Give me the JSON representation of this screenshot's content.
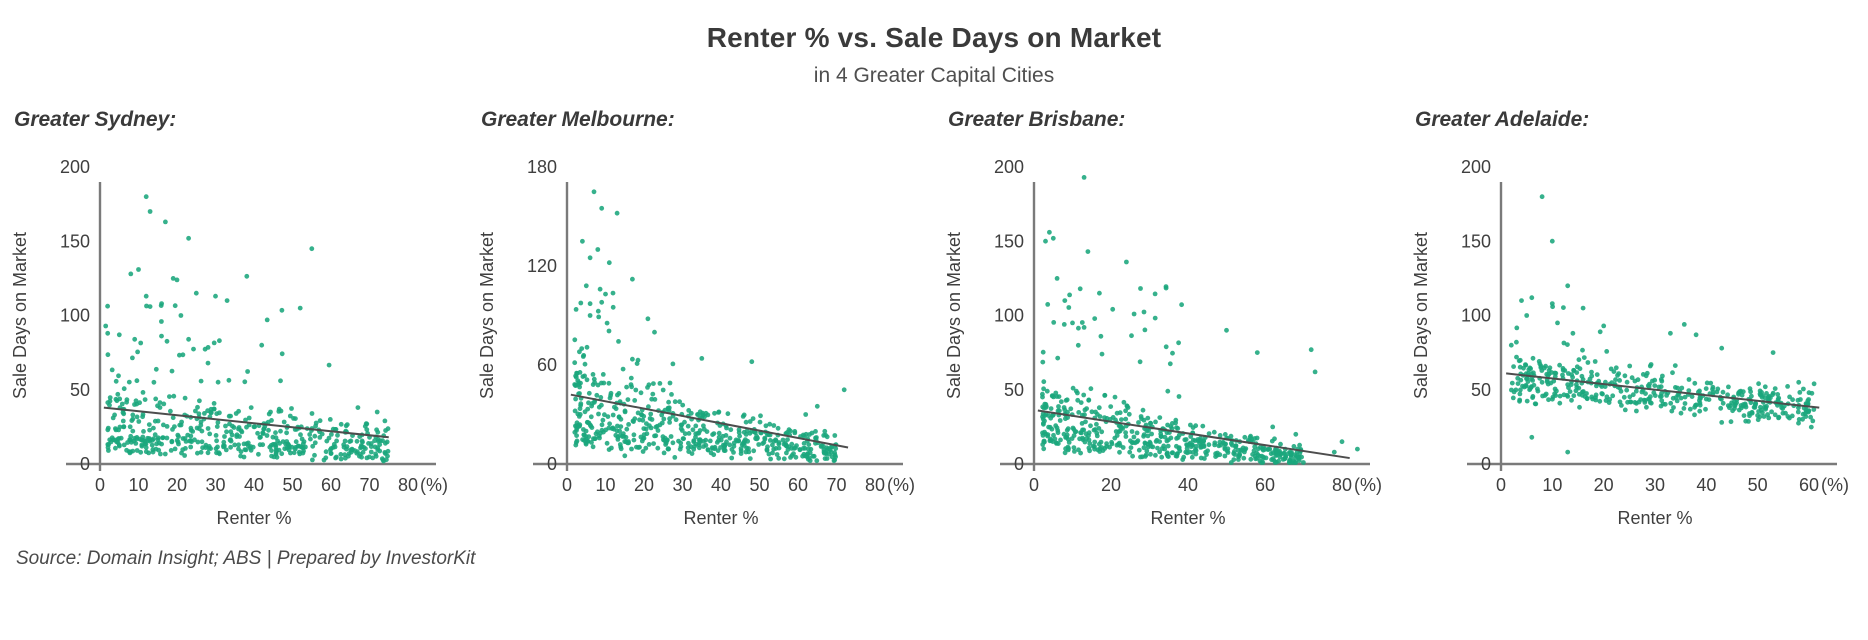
{
  "header": {
    "title": "Renter % vs. Sale Days on Market",
    "subtitle": "in 4 Greater Capital Cities"
  },
  "footer": {
    "source": "Source: Domain Insight; ABS | Prepared by InvestorKit"
  },
  "colors": {
    "dot": "#1aa67c",
    "trend": "#4d4d4d",
    "axis": "#7a7a7a",
    "text_dark": "#3a3a3a",
    "text_mid": "#4f4f4f"
  },
  "chart_data": {
    "type": "scatter",
    "title": "Renter % vs. Sale Days on Market",
    "subtitle": "in 4 Greater Capital Cities",
    "legend": "none",
    "grid": false,
    "charts": [
      {
        "title": "Greater Sydney:",
        "slug": "greater-sydney",
        "xlabel": "Renter %",
        "ylabel": "Sale Days on Market",
        "unit_label": "(%)",
        "x_ticks": [
          0,
          10,
          20,
          30,
          40,
          50,
          60,
          70,
          80
        ],
        "y_ticks": [
          0,
          50,
          100,
          150,
          200
        ],
        "x_range": [
          0,
          80
        ],
        "y_range": [
          0,
          200
        ],
        "trend": {
          "x1": 1,
          "y1": 38,
          "x2": 75,
          "y2": 18
        },
        "outliers": [
          [
            12,
            180
          ],
          [
            13,
            170
          ],
          [
            17,
            163
          ],
          [
            23,
            152
          ],
          [
            55,
            145
          ],
          [
            10,
            131
          ],
          [
            8,
            128
          ],
          [
            19,
            125
          ],
          [
            20,
            124
          ],
          [
            12,
            113
          ],
          [
            25,
            115
          ],
          [
            30,
            113
          ],
          [
            33,
            110
          ],
          [
            52,
            105
          ],
          [
            16,
            108
          ],
          [
            13,
            106
          ],
          [
            21,
            100
          ],
          [
            2,
            88
          ],
          [
            5,
            87
          ],
          [
            9,
            84
          ],
          [
            23,
            84
          ],
          [
            31,
            83
          ],
          [
            42,
            80
          ],
          [
            67,
            38
          ],
          [
            72,
            35
          ],
          [
            74,
            29
          ],
          [
            70,
            18
          ],
          [
            64,
            10
          ],
          [
            60,
            7
          ]
        ],
        "generator": {
          "seed": 11,
          "bulk": {
            "n": 470,
            "x_min": 2,
            "x_span": 73,
            "x_pow": 1.15,
            "y_base0": 38,
            "y_slope": -0.267,
            "y_lo": 0.32,
            "y_hi": 1.05,
            "y_pow": 1.8,
            "jitter": 10,
            "y_min": 2
          },
          "tail": {
            "n": 38,
            "x_min": 1,
            "x_span": 60,
            "x_pow": 1.6,
            "y_min": 55,
            "y_span": 75,
            "y_pow": 2.2
          }
        }
      },
      {
        "title": "Greater Melbourne:",
        "slug": "greater-melbourne",
        "xlabel": "Renter %",
        "ylabel": "Sale Days on Market",
        "unit_label": "(%)",
        "x_ticks": [
          0,
          10,
          20,
          30,
          40,
          50,
          60,
          70,
          80
        ],
        "y_ticks": [
          0,
          60,
          120,
          180
        ],
        "x_range": [
          0,
          80
        ],
        "y_range": [
          0,
          180
        ],
        "trend": {
          "x1": 1,
          "y1": 42,
          "x2": 73,
          "y2": 10
        },
        "outliers": [
          [
            7,
            165
          ],
          [
            9,
            155
          ],
          [
            13,
            152
          ],
          [
            4,
            135
          ],
          [
            8,
            130
          ],
          [
            6,
            125
          ],
          [
            11,
            122
          ],
          [
            17,
            112
          ],
          [
            5,
            108
          ],
          [
            10,
            103
          ],
          [
            9,
            98
          ],
          [
            12,
            95
          ],
          [
            6,
            90
          ],
          [
            21,
            88
          ],
          [
            48,
            62
          ],
          [
            35,
            64
          ],
          [
            72,
            45
          ],
          [
            65,
            35
          ],
          [
            62,
            30
          ],
          [
            58,
            20
          ],
          [
            15,
            5
          ],
          [
            28,
            4
          ]
        ],
        "generator": {
          "seed": 22,
          "bulk": {
            "n": 500,
            "x_min": 2,
            "x_span": 68,
            "x_pow": 1.25,
            "y_base0": 42,
            "y_slope": -0.438,
            "y_lo": 0.35,
            "y_hi": 1.0,
            "y_pow": 1.7,
            "jitter": 9,
            "y_min": 2
          },
          "tail": {
            "n": 42,
            "x_min": 2,
            "x_span": 30,
            "x_pow": 1.5,
            "y_min": 48,
            "y_span": 72,
            "y_pow": 2.0
          }
        }
      },
      {
        "title": "Greater Brisbane:",
        "slug": "greater-brisbane",
        "xlabel": "Renter %",
        "ylabel": "Sale Days on Market",
        "unit_label": "(%)",
        "x_ticks": [
          0,
          20,
          40,
          60,
          80
        ],
        "y_ticks": [
          0,
          50,
          100,
          150,
          200
        ],
        "x_range": [
          0,
          90
        ],
        "y_range": [
          0,
          200
        ],
        "trend": {
          "x1": 1,
          "y1": 36,
          "x2": 82,
          "y2": 4
        },
        "outliers": [
          [
            13,
            193
          ],
          [
            4,
            156
          ],
          [
            5,
            152
          ],
          [
            3,
            150
          ],
          [
            14,
            143
          ],
          [
            24,
            136
          ],
          [
            6,
            125
          ],
          [
            12,
            118
          ],
          [
            17,
            115
          ],
          [
            8,
            110
          ],
          [
            26,
            101
          ],
          [
            10,
            95
          ],
          [
            13,
            92
          ],
          [
            50,
            90
          ],
          [
            72,
            77
          ],
          [
            58,
            75
          ],
          [
            73,
            62
          ],
          [
            80,
            15
          ],
          [
            84,
            10
          ],
          [
            78,
            8
          ],
          [
            68,
            20
          ],
          [
            62,
            25
          ]
        ],
        "generator": {
          "seed": 33,
          "bulk": {
            "n": 500,
            "x_min": 2,
            "x_span": 68,
            "x_pow": 1.1,
            "y_base0": 36,
            "y_slope": -0.427,
            "y_lo": 0.35,
            "y_hi": 1.1,
            "y_pow": 1.6,
            "jitter": 10,
            "y_min": 1
          },
          "tail": {
            "n": 40,
            "x_min": 2,
            "x_span": 45,
            "x_pow": 1.8,
            "y_min": 45,
            "y_span": 75,
            "y_pow": 2.0
          }
        }
      },
      {
        "title": "Greater Adelaide:",
        "slug": "greater-adelaide",
        "xlabel": "Renter %",
        "ylabel": "Sale Days on Market",
        "unit_label": "(%)",
        "x_ticks": [
          0,
          10,
          20,
          30,
          40,
          50,
          60
        ],
        "y_ticks": [
          0,
          50,
          100,
          150,
          200
        ],
        "x_range": [
          0,
          62
        ],
        "y_range": [
          0,
          200
        ],
        "trend": {
          "x1": 1,
          "y1": 61,
          "x2": 62,
          "y2": 38
        },
        "outliers": [
          [
            8,
            180
          ],
          [
            10,
            150
          ],
          [
            13,
            120
          ],
          [
            6,
            112
          ],
          [
            4,
            110
          ],
          [
            10,
            108
          ],
          [
            16,
            105
          ],
          [
            5,
            100
          ],
          [
            11,
            95
          ],
          [
            20,
            93
          ],
          [
            14,
            88
          ],
          [
            33,
            88
          ],
          [
            38,
            87
          ],
          [
            43,
            78
          ],
          [
            53,
            75
          ],
          [
            2,
            80
          ],
          [
            3,
            82
          ],
          [
            6,
            18
          ],
          [
            13,
            8
          ],
          [
            43,
            28
          ],
          [
            58,
            55
          ],
          [
            61,
            54
          ],
          [
            60,
            48
          ]
        ],
        "generator": {
          "seed": 44,
          "bulk": {
            "n": 430,
            "x_min": 2,
            "x_span": 59,
            "x_pow": 1.0,
            "y_base0": 61,
            "y_slope": -0.387,
            "y_lo": 0.78,
            "y_hi": 0.42,
            "y_pow": 1.2,
            "jitter": 12,
            "y_min": 20
          },
          "tail": {
            "n": 16,
            "x_min": 2,
            "x_span": 35,
            "x_pow": 1.4,
            "y_min": 66,
            "y_span": 40,
            "y_pow": 2.0
          }
        }
      }
    ]
  }
}
